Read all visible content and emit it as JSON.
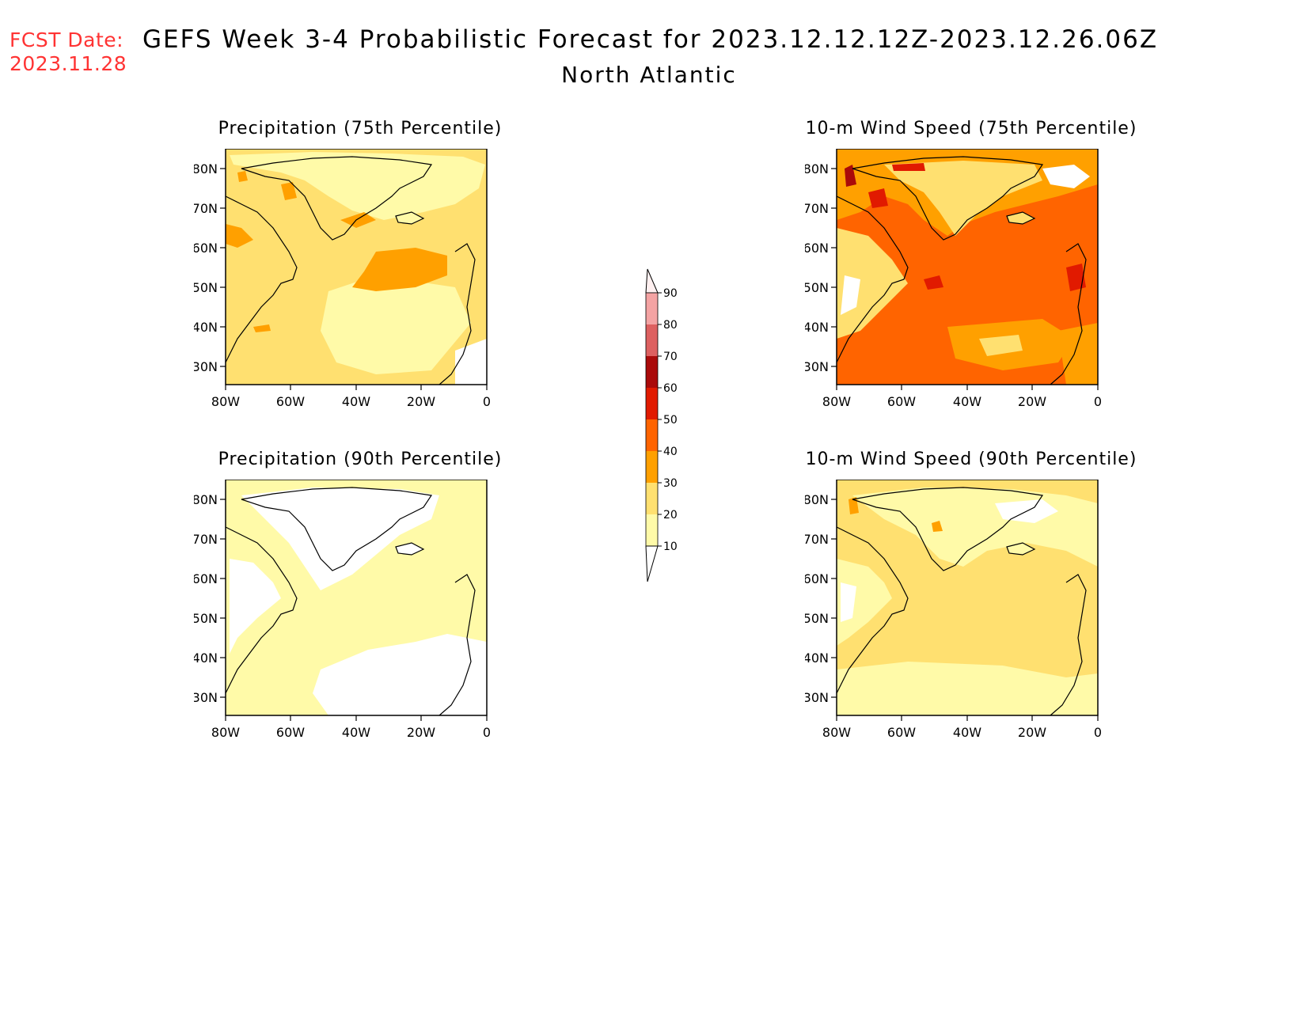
{
  "header": {
    "fcst_label": "FCST Date:",
    "fcst_date": "2023.11.28",
    "title": "GEFS Week 3-4 Probabilistic Forecast for 2023.12.12.12Z-2023.12.26.06Z",
    "region": "North Atlantic"
  },
  "axes": {
    "lat_ticks": [
      "80N",
      "70N",
      "60N",
      "50N",
      "40N",
      "30N"
    ],
    "lon_ticks": [
      "80W",
      "60W",
      "40W",
      "20W",
      "0"
    ],
    "lat_range_deg": [
      25,
      85
    ],
    "lon_range_deg": [
      -80,
      0
    ]
  },
  "colorbar": {
    "levels": [
      "90",
      "80",
      "70",
      "60",
      "50",
      "40",
      "30",
      "20",
      "10"
    ],
    "colors": [
      "#fff0f0",
      "#f4a3a3",
      "#dd6060",
      "#aa0a0a",
      "#e11a00",
      "#ff6400",
      "#ffa000",
      "#ffe070",
      "#fffaa8"
    ]
  },
  "panels": [
    {
      "title": "Precipitation (75th Percentile)",
      "base_color": "#ffe070"
    },
    {
      "title": "10-m Wind Speed (75th Percentile)",
      "base_color": "#ff6400"
    },
    {
      "title": "Precipitation (90th Percentile)",
      "base_color": "#fffaa8"
    },
    {
      "title": "10-m Wind Speed (90th Percentile)",
      "base_color": "#ffe070"
    }
  ]
}
